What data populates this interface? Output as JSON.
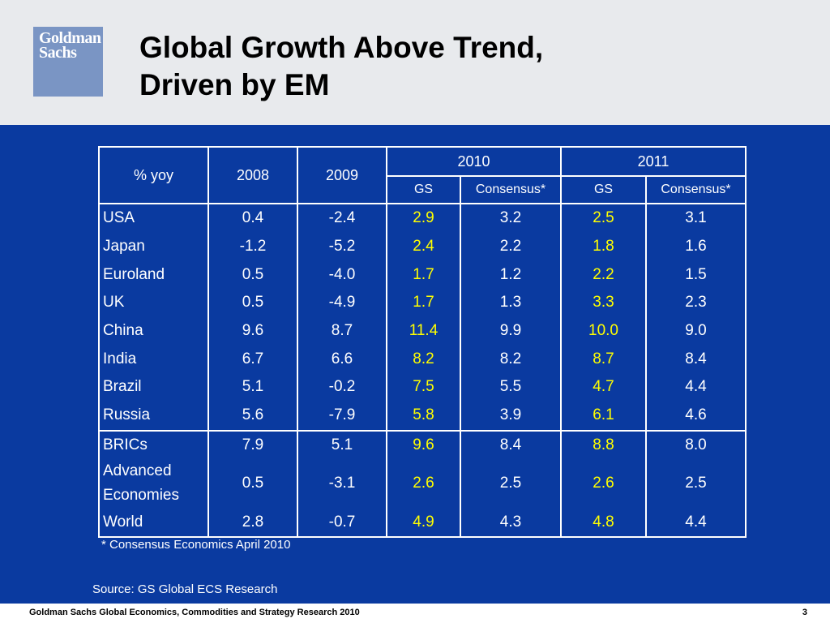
{
  "slide": {
    "title_lines": [
      "Global Growth Above Trend,",
      "Driven by EM"
    ],
    "logo": {
      "line1": "Goldman",
      "line2": "Sachs",
      "color": "#7a95c4"
    },
    "background_color": "#0a3aa0",
    "highlight_color": "#ffff00"
  },
  "table": {
    "corner_label": "% yoy",
    "col_2008": "2008",
    "col_2009": "2009",
    "col_2010": "2010",
    "col_2011": "2011",
    "sub_gs": "GS",
    "sub_consensus": "Consensus*",
    "rows": [
      {
        "country": "USA",
        "y2008": "0.4",
        "y2009": "-2.4",
        "gs2010": "2.9",
        "cons2010": "3.2",
        "gs2011": "2.5",
        "cons2011": "3.1"
      },
      {
        "country": "Japan",
        "y2008": "-1.2",
        "y2009": "-5.2",
        "gs2010": "2.4",
        "cons2010": "2.2",
        "gs2011": "1.8",
        "cons2011": "1.6"
      },
      {
        "country": "Euroland",
        "y2008": "0.5",
        "y2009": "-4.0",
        "gs2010": "1.7",
        "cons2010": "1.2",
        "gs2011": "2.2",
        "cons2011": "1.5"
      },
      {
        "country": "UK",
        "y2008": "0.5",
        "y2009": "-4.9",
        "gs2010": "1.7",
        "cons2010": "1.3",
        "gs2011": "3.3",
        "cons2011": "2.3"
      },
      {
        "country": "China",
        "y2008": "9.6",
        "y2009": "8.7",
        "gs2010": "11.4",
        "cons2010": "9.9",
        "gs2011": "10.0",
        "cons2011": "9.0"
      },
      {
        "country": "India",
        "y2008": "6.7",
        "y2009": "6.6",
        "gs2010": "8.2",
        "cons2010": "8.2",
        "gs2011": "8.7",
        "cons2011": "8.4"
      },
      {
        "country": "Brazil",
        "y2008": "5.1",
        "y2009": "-0.2",
        "gs2010": "7.5",
        "cons2010": "5.5",
        "gs2011": "4.7",
        "cons2011": "4.4"
      },
      {
        "country": "Russia",
        "y2008": "5.6",
        "y2009": "-7.9",
        "gs2010": "5.8",
        "cons2010": "3.9",
        "gs2011": "6.1",
        "cons2011": "4.6"
      },
      {
        "country": "BRICs",
        "y2008": "7.9",
        "y2009": "5.1",
        "gs2010": "9.6",
        "cons2010": "8.4",
        "gs2011": "8.8",
        "cons2011": "8.0"
      },
      {
        "country_line1": "Advanced",
        "country_line2": "Economies",
        "y2008": "0.5",
        "y2009": "-3.1",
        "gs2010": "2.6",
        "cons2010": "2.5",
        "gs2011": "2.6",
        "cons2011": "2.5"
      },
      {
        "country": "World",
        "y2008": "2.8",
        "y2009": "-0.7",
        "gs2010": "4.9",
        "cons2010": "4.3",
        "gs2011": "4.8",
        "cons2011": "4.4"
      }
    ]
  },
  "footnote": "* Consensus Economics April 2010",
  "source": "Source: GS Global ECS Research",
  "footer": {
    "text": "Goldman Sachs Global Economics, Commodities and Strategy Research 2010",
    "page_number": "3"
  }
}
